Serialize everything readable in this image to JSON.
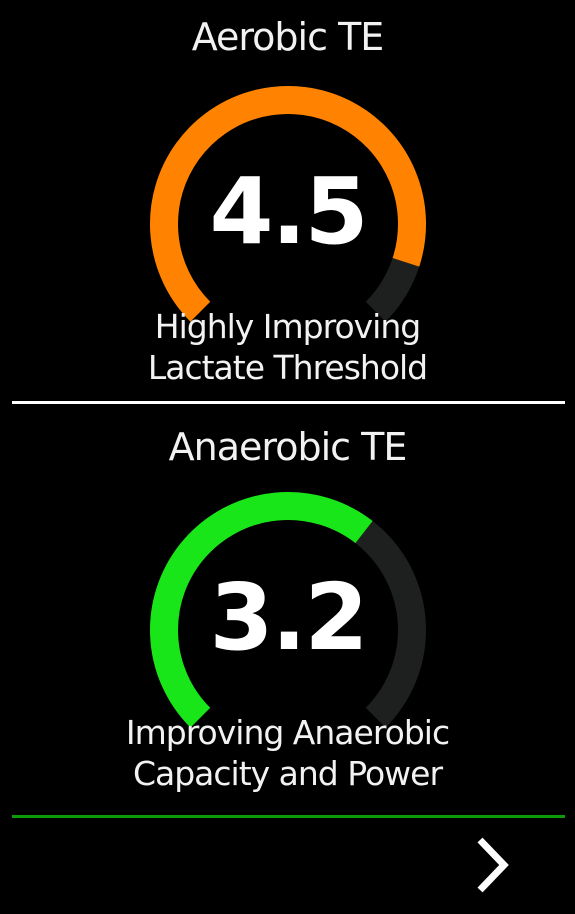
{
  "aerobic": {
    "title": "Aerobic TE",
    "value": "4.5",
    "value_num": 4.5,
    "max": 5.0,
    "description_line1": "Highly Improving",
    "description_line2": "Lactate Threshold",
    "color": "#ff8200"
  },
  "anaerobic": {
    "title": "Anaerobic TE",
    "value": "3.2",
    "value_num": 3.2,
    "max": 5.0,
    "description_line1": "Improving Anaerobic",
    "description_line2": "Capacity and Power",
    "color": "#19e619"
  },
  "gauge_track_color": "#1e2020",
  "divider_top_color": "#ffffff",
  "divider_bottom_color": "#0a9a0a",
  "nav": {
    "next_icon": "chevron-right-icon"
  }
}
